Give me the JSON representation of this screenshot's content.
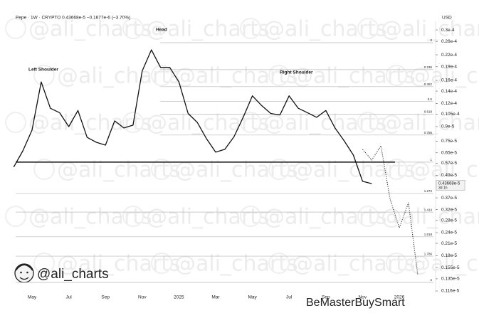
{
  "chart_data": {
    "type": "line",
    "header": "Pepe · 1W · CRYPTO  0.43668e-5  −0.1677e-6 (−3.70%)",
    "y_unit": "USD",
    "yscale": "log",
    "grid": false,
    "annotations": [
      "Left Shoulder",
      "Head",
      "Right Shoulder"
    ],
    "categories": [
      null,
      null,
      "May",
      null,
      null,
      null,
      "Jul",
      null,
      null,
      null,
      "Sep",
      null,
      null,
      null,
      "Nov",
      null,
      null,
      null,
      "2025",
      null,
      null,
      null,
      "Mar",
      null,
      null,
      null,
      "May",
      null,
      null,
      null,
      "Jul",
      null,
      null,
      null,
      "Sep",
      null,
      null,
      null,
      "Nov",
      null,
      null,
      null,
      "2026",
      null,
      null
    ],
    "series": [
      {
        "color": "#111111",
        "values": [
          5.43e-06,
          6.65e-06,
          8.61e-06,
          1.57e-05,
          1.13e-05,
          1.07e-05,
          8.99e-06,
          1.1e-05,
          7.87e-06,
          7.4e-06,
          7.14e-06,
          9.66e-06,
          8.84e-06,
          9.16e-06,
          1.8e-05,
          2.34e-05,
          1.88e-05,
          1.88e-05,
          1.57e-05,
          1.06e-05,
          9.48e-06,
          7.74e-06,
          6.54e-06,
          6.78e-06,
          7.94e-06,
          1.01e-05,
          1.32e-05,
          1.17e-05,
          1.06e-05,
          1.04e-05,
          1.32e-05,
          1.13e-05,
          1.07e-05,
          1.01e-05,
          1.1e-05,
          8.84e-06,
          7.53e-06,
          6.31e-06,
          4.55e-06,
          4.42e-06,
          null,
          null,
          null,
          null,
          null
        ]
      },
      {
        "color": "#333333",
        "dash": "dotted",
        "values": [
          null,
          null,
          null,
          null,
          null,
          null,
          null,
          null,
          null,
          null,
          null,
          null,
          null,
          null,
          null,
          null,
          null,
          null,
          null,
          null,
          null,
          null,
          null,
          null,
          null,
          null,
          null,
          null,
          null,
          null,
          null,
          null,
          null,
          null,
          null,
          null,
          null,
          null,
          6.78e-06,
          5.93e-06,
          7.08e-06,
          3.64e-06,
          2.55e-06,
          3.48e-06,
          1.43e-06
        ]
      }
    ],
    "neckline": 5.78e-06,
    "fib_levels": [
      {
        "ratio": 0,
        "value": 2.56e-05
      },
      {
        "ratio": 0.236,
        "value": 1.83e-05
      },
      {
        "ratio": 0.382,
        "value": 1.48e-05
      },
      {
        "ratio": 0.5,
        "value": 1.23e-05
      },
      {
        "ratio": 0.618,
        "value": 1.05e-05
      },
      {
        "ratio": 0.786,
        "value": 8.1e-06
      },
      {
        "ratio": 1,
        "value": 5.78e-06
      },
      {
        "ratio": 1.272,
        "value": 3.91e-06
      },
      {
        "ratio": 1.414,
        "value": 3.1e-06
      },
      {
        "ratio": 1.618,
        "value": 2.28e-06
      },
      {
        "ratio": 1.786,
        "value": 1.79e-06
      },
      {
        "ratio": 2,
        "value": 1.29e-06
      }
    ],
    "last_price": {
      "value": 4.3668e-06,
      "label": "0.43668e-5",
      "countdown": "3d 1h"
    },
    "ylim": [
      1.1e-06,
      3.4e-05
    ],
    "yticks": [
      {
        "value": 3e-05,
        "label": "0.3e-4"
      },
      {
        "value": 2.6e-05,
        "label": "0.26e-4"
      },
      {
        "value": 2.2e-05,
        "label": "0.22e-4"
      },
      {
        "value": 1.9e-05,
        "label": "0.19e-4"
      },
      {
        "value": 1.6e-05,
        "label": "0.16e-4"
      },
      {
        "value": 1.4e-05,
        "label": "0.14e-4"
      },
      {
        "value": 1.2e-05,
        "label": "0.12e-4"
      },
      {
        "value": 1.05e-05,
        "label": "0.105e-4"
      },
      {
        "value": 9e-06,
        "label": "0.9e-5"
      },
      {
        "value": 7.5e-06,
        "label": "0.75e-5"
      },
      {
        "value": 6.5e-06,
        "label": "0.65e-5"
      },
      {
        "value": 5.7e-06,
        "label": "0.57e-5"
      },
      {
        "value": 4.9e-06,
        "label": "0.49e-5"
      },
      {
        "value": 3.7e-06,
        "label": "0.37e-5"
      },
      {
        "value": 3.2e-06,
        "label": "0.32e-5"
      },
      {
        "value": 2.8e-06,
        "label": "0.28e-5"
      },
      {
        "value": 2.4e-06,
        "label": "0.24e-5"
      },
      {
        "value": 2.1e-06,
        "label": "0.21e-5"
      },
      {
        "value": 1.8e-06,
        "label": "0.18e-5"
      },
      {
        "value": 1.55e-06,
        "label": "0.155e-5"
      },
      {
        "value": 1.35e-06,
        "label": "0.135e-5"
      },
      {
        "value": 1.16e-06,
        "label": "0.116e-5"
      }
    ],
    "brand": "@ali_charts",
    "watermark": "@ali_charts",
    "overlay_watermark": "BeMasterBuySmart"
  }
}
